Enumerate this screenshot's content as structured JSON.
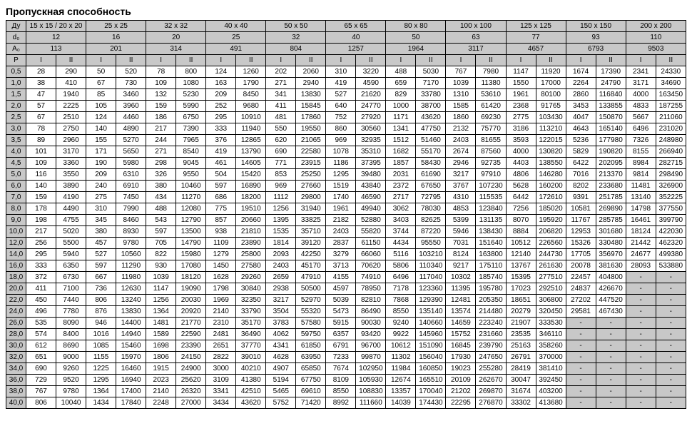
{
  "title": "Пропускная способность",
  "header_rows": [
    {
      "label": "Ду",
      "cells": [
        "15 x 15 / 20 x 20",
        "25 x 25",
        "32 x 32",
        "40 x 40",
        "50 x 50",
        "65 x 65",
        "80 x 80",
        "100 x 100",
        "125 x 125",
        "150 x 150",
        "200 x 200"
      ]
    },
    {
      "label": "d₀",
      "cells": [
        "12",
        "16",
        "20",
        "25",
        "32",
        "40",
        "50",
        "63",
        "77",
        "93",
        "110"
      ]
    },
    {
      "label": "A₀",
      "cells": [
        "113",
        "201",
        "314",
        "491",
        "804",
        "1257",
        "1964",
        "3117",
        "4657",
        "6793",
        "9503"
      ]
    }
  ],
  "sub_label": "P",
  "sub_cols": [
    "I",
    "II"
  ],
  "columns_count": 11,
  "rows": [
    {
      "p": "0,5",
      "v": [
        "28",
        "290",
        "50",
        "520",
        "78",
        "800",
        "124",
        "1260",
        "202",
        "2060",
        "310",
        "3220",
        "488",
        "5030",
        "767",
        "7980",
        "1147",
        "11920",
        "1674",
        "17390",
        "2341",
        "24330"
      ]
    },
    {
      "p": "1,0",
      "v": [
        "38",
        "410",
        "67",
        "730",
        "109",
        "1080",
        "163",
        "1790",
        "271",
        "2940",
        "419",
        "4590",
        "659",
        "7170",
        "1039",
        "11380",
        "1550",
        "17000",
        "2264",
        "24790",
        "3171",
        "34690"
      ]
    },
    {
      "p": "1,5",
      "v": [
        "47",
        "1940",
        "85",
        "3460",
        "132",
        "5230",
        "209",
        "8450",
        "341",
        "13830",
        "527",
        "21620",
        "829",
        "33780",
        "1310",
        "53610",
        "1961",
        "80100",
        "2860",
        "116840",
        "4000",
        "163450"
      ]
    },
    {
      "p": "2,0",
      "v": [
        "57",
        "2225",
        "105",
        "3960",
        "159",
        "5990",
        "252",
        "9680",
        "411",
        "15845",
        "640",
        "24770",
        "1000",
        "38700",
        "1585",
        "61420",
        "2368",
        "91765",
        "3453",
        "133855",
        "4833",
        "187255"
      ]
    },
    {
      "p": "2,5",
      "v": [
        "67",
        "2510",
        "124",
        "4460",
        "186",
        "6750",
        "295",
        "10910",
        "481",
        "17860",
        "752",
        "27920",
        "1171",
        "43620",
        "1860",
        "69230",
        "2775",
        "103430",
        "4047",
        "150870",
        "5667",
        "211060"
      ]
    },
    {
      "p": "3,0",
      "v": [
        "78",
        "2750",
        "140",
        "4890",
        "217",
        "7390",
        "333",
        "11940",
        "550",
        "19550",
        "860",
        "30560",
        "1341",
        "47750",
        "2132",
        "75770",
        "3186",
        "113210",
        "4643",
        "165140",
        "6496",
        "231020"
      ]
    },
    {
      "p": "3,5",
      "v": [
        "89",
        "2960",
        "155",
        "5270",
        "244",
        "7965",
        "376",
        "12865",
        "620",
        "21065",
        "969",
        "32935",
        "1512",
        "51460",
        "2403",
        "81655",
        "3593",
        "122015",
        "5236",
        "177980",
        "7326",
        "248980"
      ]
    },
    {
      "p": "4,0",
      "v": [
        "101",
        "3170",
        "171",
        "5650",
        "271",
        "8540",
        "419",
        "13790",
        "690",
        "22580",
        "1078",
        "35310",
        "1682",
        "55170",
        "2674",
        "87560",
        "4000",
        "130820",
        "5829",
        "190820",
        "8155",
        "266940"
      ]
    },
    {
      "p": "4,5",
      "v": [
        "109",
        "3360",
        "190",
        "5980",
        "298",
        "9045",
        "461",
        "14605",
        "771",
        "23915",
        "1186",
        "37395",
        "1857",
        "58430",
        "2946",
        "92735",
        "4403",
        "138550",
        "6422",
        "202095",
        "8984",
        "282715"
      ]
    },
    {
      "p": "5,0",
      "v": [
        "116",
        "3550",
        "209",
        "6310",
        "326",
        "9550",
        "504",
        "15420",
        "853",
        "25250",
        "1295",
        "39480",
        "2031",
        "61690",
        "3217",
        "97910",
        "4806",
        "146280",
        "7016",
        "213370",
        "9814",
        "298490"
      ]
    },
    {
      "p": "6,0",
      "v": [
        "140",
        "3890",
        "240",
        "6910",
        "380",
        "10460",
        "597",
        "16890",
        "969",
        "27660",
        "1519",
        "43840",
        "2372",
        "67650",
        "3767",
        "107230",
        "5628",
        "160200",
        "8202",
        "233680",
        "11481",
        "326900"
      ]
    },
    {
      "p": "7,0",
      "v": [
        "159",
        "4190",
        "275",
        "7450",
        "434",
        "11270",
        "686",
        "18200",
        "1112",
        "29800",
        "1740",
        "46590",
        "2717",
        "72795",
        "4310",
        "115535",
        "6442",
        "172610",
        "9391",
        "251785",
        "13140",
        "352225"
      ]
    },
    {
      "p": "8,0",
      "v": [
        "178",
        "4490",
        "310",
        "7990",
        "488",
        "12080",
        "775",
        "19510",
        "1256",
        "31940",
        "1961",
        "49940",
        "3062",
        "78030",
        "4853",
        "123840",
        "7256",
        "185020",
        "10581",
        "269890",
        "14798",
        "377550"
      ]
    },
    {
      "p": "9,0",
      "v": [
        "198",
        "4755",
        "345",
        "8460",
        "543",
        "12790",
        "857",
        "20660",
        "1395",
        "33825",
        "2182",
        "52880",
        "3403",
        "82625",
        "5399",
        "131135",
        "8070",
        "195920",
        "11767",
        "285785",
        "16461",
        "399790"
      ]
    },
    {
      "p": "10,0",
      "v": [
        "217",
        "5020",
        "380",
        "8930",
        "597",
        "13500",
        "938",
        "21810",
        "1535",
        "35710",
        "2403",
        "55820",
        "3744",
        "87220",
        "5946",
        "138430",
        "8884",
        "206820",
        "12953",
        "301680",
        "18124",
        "422030"
      ]
    },
    {
      "p": "12,0",
      "v": [
        "256",
        "5500",
        "457",
        "9780",
        "705",
        "14790",
        "1109",
        "23890",
        "1814",
        "39120",
        "2837",
        "61150",
        "4434",
        "95550",
        "7031",
        "151640",
        "10512",
        "226560",
        "15326",
        "330480",
        "21442",
        "462320"
      ]
    },
    {
      "p": "14,0",
      "v": [
        "295",
        "5940",
        "527",
        "10560",
        "822",
        "15980",
        "1279",
        "25800",
        "2093",
        "42250",
        "3279",
        "66060",
        "5116",
        "103210",
        "8124",
        "163800",
        "12140",
        "244730",
        "17705",
        "356970",
        "24677",
        "499380"
      ]
    },
    {
      "p": "16,0",
      "v": [
        "333",
        "6350",
        "597",
        "11290",
        "930",
        "17080",
        "1450",
        "27580",
        "2403",
        "45170",
        "3713",
        "70620",
        "5806",
        "110340",
        "9217",
        "175110",
        "13767",
        "261630",
        "20078",
        "381630",
        "28093",
        "533880"
      ]
    },
    {
      "p": "18,0",
      "v": [
        "372",
        "6730",
        "667",
        "11980",
        "1039",
        "18120",
        "1628",
        "29260",
        "2659",
        "47910",
        "4155",
        "74910",
        "6496",
        "117040",
        "10302",
        "185740",
        "15395",
        "277510",
        "22457",
        "404800",
        "-",
        "-"
      ]
    },
    {
      "p": "20,0",
      "v": [
        "411",
        "7100",
        "736",
        "12630",
        "1147",
        "19090",
        "1798",
        "30840",
        "2938",
        "50500",
        "4597",
        "78950",
        "7178",
        "123360",
        "11395",
        "195780",
        "17023",
        "292510",
        "24837",
        "426670",
        "-",
        "-"
      ]
    },
    {
      "p": "22,0",
      "v": [
        "450",
        "7440",
        "806",
        "13240",
        "1256",
        "20030",
        "1969",
        "32350",
        "3217",
        "52970",
        "5039",
        "82810",
        "7868",
        "129390",
        "12481",
        "205350",
        "18651",
        "306800",
        "27202",
        "447520",
        "-",
        "-"
      ]
    },
    {
      "p": "24,0",
      "v": [
        "496",
        "7780",
        "876",
        "13830",
        "1364",
        "20920",
        "2140",
        "33790",
        "3504",
        "55320",
        "5473",
        "86490",
        "8550",
        "135140",
        "13574",
        "214480",
        "20279",
        "320450",
        "29581",
        "467430",
        "-",
        "-"
      ]
    },
    {
      "p": "26,0",
      "v": [
        "535",
        "8090",
        "946",
        "14400",
        "1481",
        "21770",
        "2310",
        "35170",
        "3783",
        "57580",
        "5915",
        "90030",
        "9240",
        "140660",
        "14659",
        "223240",
        "21907",
        "333530",
        "-",
        "-",
        "-",
        "-"
      ]
    },
    {
      "p": "28,0",
      "v": [
        "574",
        "8400",
        "1016",
        "14940",
        "1589",
        "22590",
        "2481",
        "36490",
        "4062",
        "59750",
        "6357",
        "93420",
        "9922",
        "145960",
        "15752",
        "231660",
        "23535",
        "346110",
        "-",
        "-",
        "-",
        "-"
      ]
    },
    {
      "p": "30,0",
      "v": [
        "612",
        "8690",
        "1085",
        "15460",
        "1698",
        "23390",
        "2651",
        "37770",
        "4341",
        "61850",
        "6791",
        "96700",
        "10612",
        "151090",
        "16845",
        "239790",
        "25163",
        "358260",
        "-",
        "-",
        "-",
        "-"
      ]
    },
    {
      "p": "32,0",
      "v": [
        "651",
        "9000",
        "1155",
        "15970",
        "1806",
        "24150",
        "2822",
        "39010",
        "4628",
        "63950",
        "7233",
        "99870",
        "11302",
        "156040",
        "17930",
        "247650",
        "26791",
        "370000",
        "-",
        "-",
        "-",
        "-"
      ]
    },
    {
      "p": "34,0",
      "v": [
        "690",
        "9260",
        "1225",
        "16460",
        "1915",
        "24900",
        "3000",
        "40210",
        "4907",
        "65850",
        "7674",
        "102950",
        "11984",
        "160850",
        "19023",
        "255280",
        "28419",
        "381410",
        "-",
        "-",
        "-",
        "-"
      ]
    },
    {
      "p": "36,0",
      "v": [
        "729",
        "9520",
        "1295",
        "16940",
        "2023",
        "25620",
        "3109",
        "41380",
        "5194",
        "67750",
        "8109",
        "105930",
        "12674",
        "165510",
        "20109",
        "262670",
        "30047",
        "392450",
        "-",
        "-",
        "-",
        "-"
      ]
    },
    {
      "p": "38,0",
      "v": [
        "767",
        "9780",
        "1364",
        "17400",
        "2140",
        "26320",
        "3341",
        "42510",
        "5465",
        "69610",
        "8550",
        "108830",
        "13357",
        "170040",
        "21202",
        "269870",
        "31674",
        "403200",
        "-",
        "-",
        "-",
        "-"
      ]
    },
    {
      "p": "40,0",
      "v": [
        "806",
        "10040",
        "1434",
        "17840",
        "2248",
        "27000",
        "3434",
        "43620",
        "5752",
        "71420",
        "8992",
        "111660",
        "14039",
        "174430",
        "22295",
        "276870",
        "33302",
        "413680",
        "-",
        "-",
        "-",
        "-"
      ]
    }
  ]
}
